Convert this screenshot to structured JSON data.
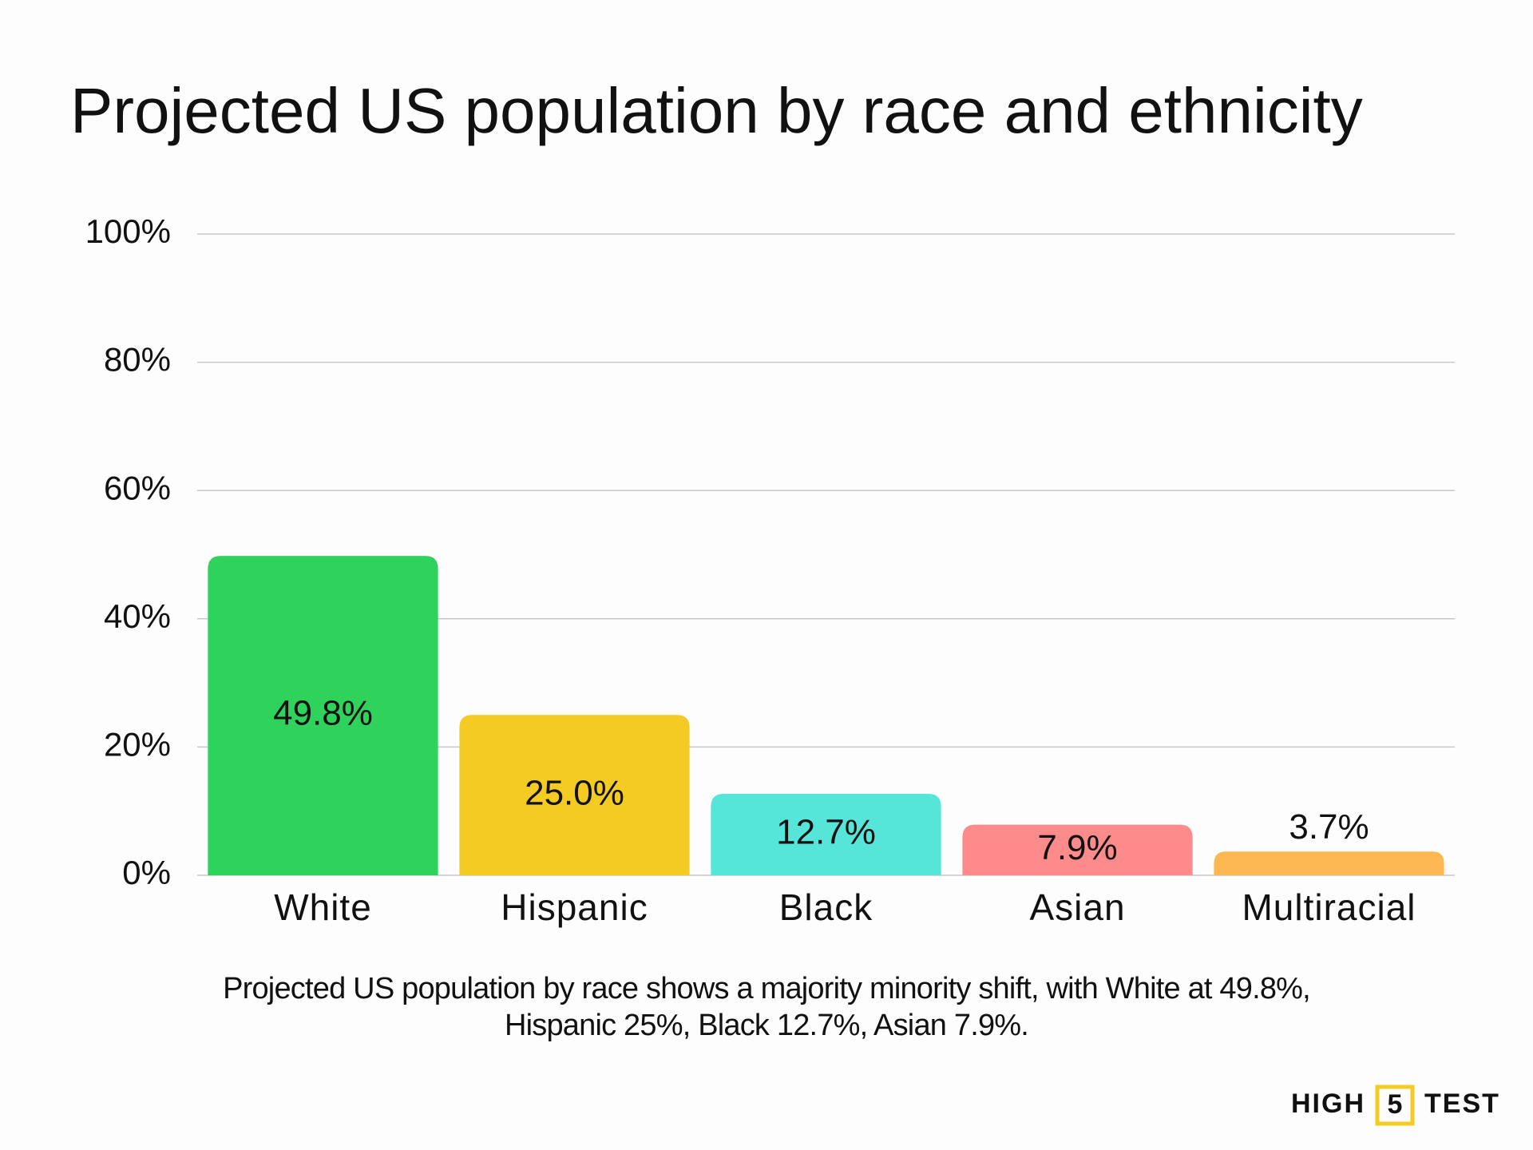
{
  "chart_data": {
    "type": "bar",
    "title": "Projected US population by race and ethnicity",
    "categories": [
      "White",
      "Hispanic",
      "Black",
      "Asian",
      "Multiracial"
    ],
    "values": [
      49.8,
      25.0,
      12.7,
      7.9,
      3.7
    ],
    "value_labels": [
      "49.8%",
      "25.0%",
      "12.7%",
      "7.9%",
      "3.7%"
    ],
    "colors": [
      "#2fd35c",
      "#f3cb22",
      "#55e5d9",
      "#fd8b8b",
      "#fdb851"
    ],
    "ylim": [
      0,
      100
    ],
    "yticks": [
      {
        "value": 0,
        "label": "0%"
      },
      {
        "value": 20,
        "label": "20%"
      },
      {
        "value": 40,
        "label": "40%"
      },
      {
        "value": 60,
        "label": "60%"
      },
      {
        "value": 80,
        "label": "80%"
      },
      {
        "value": 100,
        "label": "100%"
      }
    ],
    "grid": true,
    "caption": [
      "Projected US population by race shows a majority minority shift, with White at 49.8%,",
      "Hispanic 25%, Black 12.7%, Asian 7.9%."
    ]
  },
  "logo": {
    "left": "HIGH",
    "middle": "5",
    "right": "TEST"
  }
}
